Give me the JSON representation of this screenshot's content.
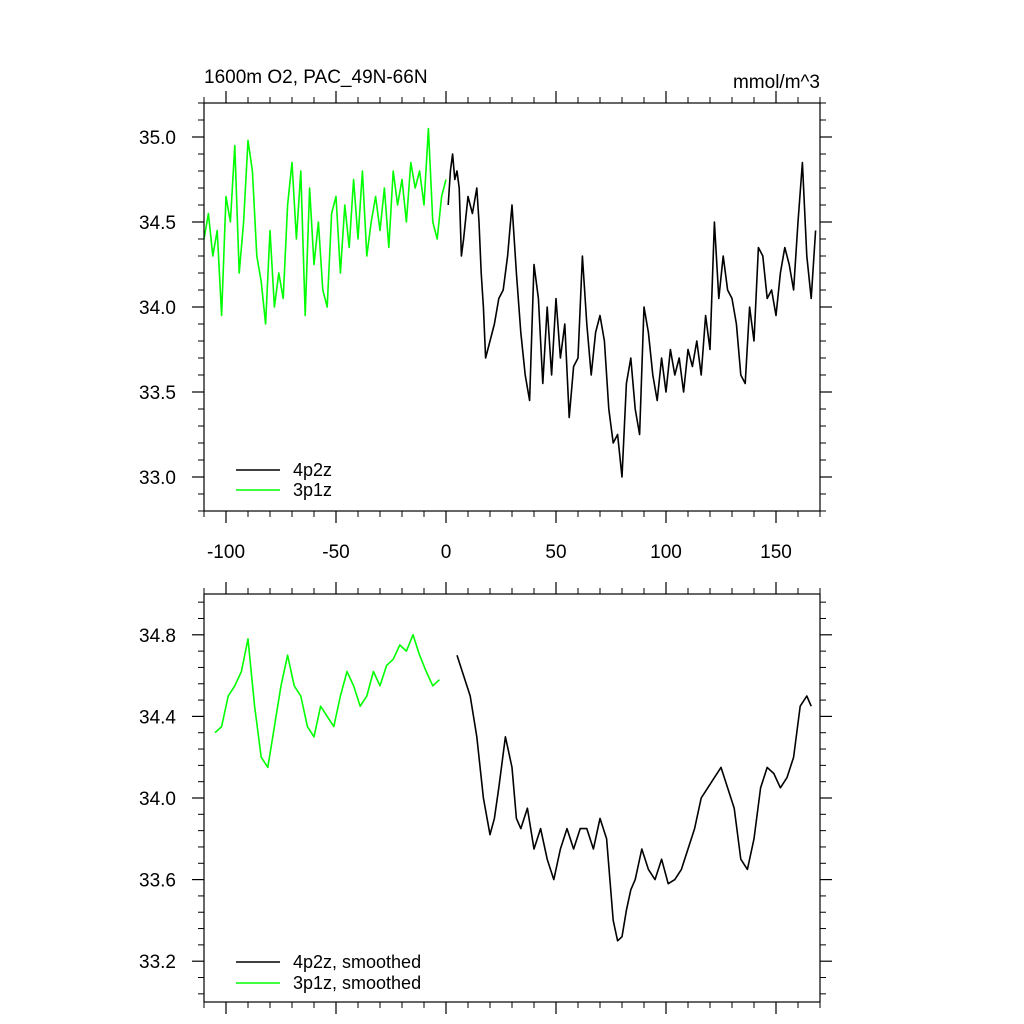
{
  "chart_data": [
    {
      "type": "line",
      "title": "1600m O2, PAC_49N-66N",
      "units": "mmol/m^3",
      "xlim": [
        -110,
        170
      ],
      "ylim": [
        32.8,
        35.2
      ],
      "x_ticks": [
        -100,
        -50,
        0,
        50,
        100,
        150
      ],
      "x_tick_labels": [
        "-100",
        "-50",
        "0",
        "50",
        "100",
        "150"
      ],
      "y_ticks": [
        33.0,
        33.5,
        34.0,
        34.5,
        35.0
      ],
      "y_tick_labels": [
        "33.0",
        "33.5",
        "34.0",
        "34.5",
        "35.0"
      ],
      "legend_position": "bottom-left",
      "series": [
        {
          "name": "4p2z",
          "color": "#000000",
          "x": [
            1,
            2,
            3,
            4,
            5,
            6,
            7,
            8,
            10,
            12,
            14,
            15,
            16,
            17,
            18,
            20,
            22,
            24,
            26,
            28,
            30,
            32,
            34,
            36,
            38,
            40,
            42,
            44,
            46,
            48,
            50,
            52,
            54,
            56,
            58,
            60,
            62,
            64,
            66,
            68,
            70,
            72,
            74,
            76,
            78,
            80,
            82,
            84,
            86,
            88,
            90,
            92,
            94,
            96,
            98,
            100,
            102,
            104,
            106,
            108,
            110,
            112,
            114,
            116,
            118,
            120,
            122,
            124,
            126,
            128,
            130,
            132,
            134,
            136,
            138,
            140,
            142,
            144,
            146,
            148,
            150,
            152,
            154,
            156,
            158,
            160,
            162,
            164,
            166,
            168
          ],
          "values": [
            34.6,
            34.8,
            34.9,
            34.75,
            34.8,
            34.7,
            34.3,
            34.4,
            34.65,
            34.55,
            34.7,
            34.5,
            34.2,
            34.0,
            33.7,
            33.8,
            33.9,
            34.05,
            34.1,
            34.3,
            34.6,
            34.2,
            33.85,
            33.6,
            33.45,
            34.25,
            34.05,
            33.55,
            34.0,
            33.6,
            34.05,
            33.7,
            33.9,
            33.35,
            33.65,
            33.7,
            34.3,
            33.9,
            33.6,
            33.85,
            33.95,
            33.8,
            33.4,
            33.2,
            33.25,
            33.0,
            33.55,
            33.7,
            33.4,
            33.25,
            34.0,
            33.85,
            33.6,
            33.45,
            33.7,
            33.5,
            33.75,
            33.6,
            33.7,
            33.5,
            33.75,
            33.65,
            33.8,
            33.6,
            33.95,
            33.75,
            34.5,
            34.05,
            34.3,
            34.1,
            34.05,
            33.9,
            33.6,
            33.55,
            34.0,
            33.8,
            34.35,
            34.3,
            34.05,
            34.1,
            33.95,
            34.2,
            34.35,
            34.25,
            34.1,
            34.5,
            34.85,
            34.3,
            34.05,
            34.45
          ]
        },
        {
          "name": "3p1z",
          "color": "#00ff00",
          "x": [
            -110,
            -108,
            -106,
            -104,
            -102,
            -100,
            -98,
            -96,
            -94,
            -92,
            -90,
            -88,
            -86,
            -84,
            -82,
            -80,
            -78,
            -76,
            -74,
            -72,
            -70,
            -68,
            -66,
            -64,
            -62,
            -60,
            -58,
            -56,
            -54,
            -52,
            -50,
            -48,
            -46,
            -44,
            -42,
            -40,
            -38,
            -36,
            -34,
            -32,
            -30,
            -28,
            -26,
            -24,
            -22,
            -20,
            -18,
            -16,
            -14,
            -12,
            -10,
            -8,
            -6,
            -4,
            -2,
            0
          ],
          "values": [
            34.4,
            34.55,
            34.3,
            34.45,
            33.95,
            34.65,
            34.5,
            34.95,
            34.2,
            34.5,
            34.98,
            34.8,
            34.3,
            34.15,
            33.9,
            34.45,
            34.0,
            34.2,
            34.05,
            34.6,
            34.85,
            34.4,
            34.8,
            33.95,
            34.7,
            34.25,
            34.5,
            34.1,
            34.0,
            34.55,
            34.65,
            34.2,
            34.6,
            34.35,
            34.75,
            34.4,
            34.8,
            34.3,
            34.5,
            34.65,
            34.45,
            34.7,
            34.35,
            34.8,
            34.6,
            34.75,
            34.5,
            34.85,
            34.7,
            34.8,
            34.6,
            35.05,
            34.5,
            34.4,
            34.65,
            34.75
          ]
        }
      ]
    },
    {
      "type": "line",
      "xlim": [
        -110,
        170
      ],
      "ylim": [
        33.0,
        35.0
      ],
      "y_ticks": [
        33.2,
        33.6,
        34.0,
        34.4,
        34.8
      ],
      "y_tick_labels": [
        "33.2",
        "33.6",
        "34.0",
        "34.4",
        "34.8"
      ],
      "legend_position": "bottom-left",
      "series": [
        {
          "name": "4p2z, smoothed",
          "color": "#000000",
          "x": [
            5,
            8,
            11,
            14,
            17,
            20,
            22,
            24,
            27,
            30,
            32,
            34,
            37,
            40,
            43,
            46,
            49,
            52,
            55,
            58,
            61,
            64,
            67,
            70,
            73,
            76,
            78,
            80,
            82,
            84,
            86,
            89,
            92,
            95,
            98,
            101,
            104,
            107,
            110,
            113,
            116,
            119,
            122,
            125,
            128,
            131,
            134,
            137,
            140,
            143,
            146,
            149,
            152,
            155,
            158,
            161,
            164,
            166
          ],
          "values": [
            34.7,
            34.6,
            34.5,
            34.3,
            34.0,
            33.82,
            33.9,
            34.05,
            34.3,
            34.15,
            33.9,
            33.85,
            33.95,
            33.75,
            33.85,
            33.7,
            33.6,
            33.75,
            33.85,
            33.75,
            33.85,
            33.85,
            33.75,
            33.9,
            33.8,
            33.4,
            33.3,
            33.32,
            33.45,
            33.55,
            33.6,
            33.75,
            33.65,
            33.6,
            33.7,
            33.58,
            33.6,
            33.65,
            33.75,
            33.85,
            34.0,
            34.05,
            34.1,
            34.15,
            34.05,
            33.95,
            33.7,
            33.65,
            33.8,
            34.05,
            34.15,
            34.12,
            34.05,
            34.1,
            34.2,
            34.45,
            34.5,
            34.45
          ]
        },
        {
          "name": "3p1z, smoothed",
          "color": "#00ff00",
          "x": [
            -105,
            -102,
            -99,
            -96,
            -93,
            -90,
            -87,
            -84,
            -81,
            -78,
            -75,
            -72,
            -69,
            -66,
            -63,
            -60,
            -57,
            -54,
            -51,
            -48,
            -45,
            -42,
            -39,
            -36,
            -33,
            -30,
            -27,
            -24,
            -21,
            -18,
            -15,
            -12,
            -9,
            -6,
            -3
          ],
          "values": [
            34.32,
            34.35,
            34.5,
            34.55,
            34.62,
            34.78,
            34.45,
            34.2,
            34.15,
            34.35,
            34.55,
            34.7,
            34.55,
            34.5,
            34.35,
            34.3,
            34.45,
            34.4,
            34.35,
            34.5,
            34.62,
            34.55,
            34.45,
            34.5,
            34.62,
            34.55,
            34.65,
            34.68,
            34.75,
            34.72,
            34.8,
            34.7,
            34.62,
            34.55,
            34.58
          ]
        }
      ]
    }
  ]
}
